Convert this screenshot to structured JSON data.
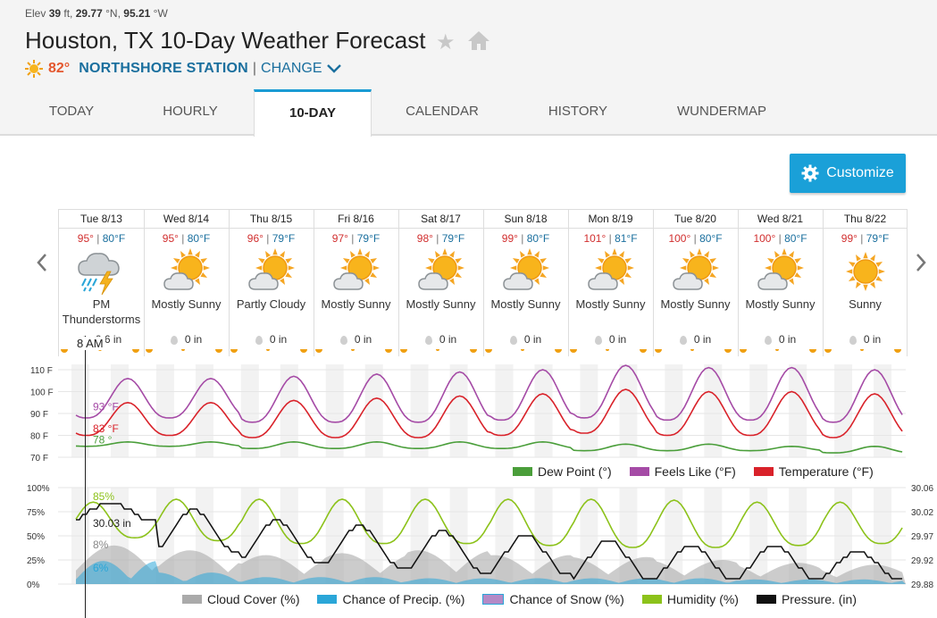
{
  "header": {
    "elev_label": "Elev",
    "elev_value": "39",
    "elev_unit": "ft,",
    "lat": "29.77",
    "lat_unit": "°N,",
    "lon": "95.21",
    "lon_unit": "°W",
    "title": "Houston, TX 10-Day Weather Forecast",
    "current_temp": "82°",
    "station": "NORTHSHORE STATION",
    "separator": "|",
    "change_label": "CHANGE"
  },
  "tabs": [
    {
      "label": "TODAY"
    },
    {
      "label": "HOURLY"
    },
    {
      "label": "10-DAY"
    },
    {
      "label": "CALENDAR"
    },
    {
      "label": "HISTORY"
    },
    {
      "label": "WUNDERMAP"
    }
  ],
  "customize_label": "Customize",
  "time_tag": "8 AM",
  "days": [
    {
      "date": "Tue 8/13",
      "hi": "95°",
      "lo": "80°F",
      "cond": "PM Thunderstorms",
      "precip": "0.6 in",
      "icon": "thunderstorm-icon"
    },
    {
      "date": "Wed 8/14",
      "hi": "95°",
      "lo": "80°F",
      "cond": "Mostly Sunny",
      "precip": "0 in",
      "icon": "mostly-sunny-icon"
    },
    {
      "date": "Thu 8/15",
      "hi": "96°",
      "lo": "79°F",
      "cond": "Partly Cloudy",
      "precip": "0 in",
      "icon": "partly-cloudy-icon"
    },
    {
      "date": "Fri 8/16",
      "hi": "97°",
      "lo": "79°F",
      "cond": "Mostly Sunny",
      "precip": "0 in",
      "icon": "mostly-sunny-icon"
    },
    {
      "date": "Sat 8/17",
      "hi": "98°",
      "lo": "79°F",
      "cond": "Mostly Sunny",
      "precip": "0 in",
      "icon": "mostly-sunny-icon"
    },
    {
      "date": "Sun 8/18",
      "hi": "99°",
      "lo": "80°F",
      "cond": "Mostly Sunny",
      "precip": "0 in",
      "icon": "mostly-sunny-icon"
    },
    {
      "date": "Mon 8/19",
      "hi": "101°",
      "lo": "81°F",
      "cond": "Mostly Sunny",
      "precip": "0 in",
      "icon": "mostly-sunny-icon"
    },
    {
      "date": "Tue 8/20",
      "hi": "100°",
      "lo": "80°F",
      "cond": "Mostly Sunny",
      "precip": "0 in",
      "icon": "mostly-sunny-icon"
    },
    {
      "date": "Wed 8/21",
      "hi": "100°",
      "lo": "80°F",
      "cond": "Mostly Sunny",
      "precip": "0 in",
      "icon": "mostly-sunny-icon"
    },
    {
      "date": "Thu 8/22",
      "hi": "99°",
      "lo": "79°F",
      "cond": "Sunny",
      "precip": "0 in",
      "icon": "sunny-icon"
    }
  ],
  "colors": {
    "temperature": "#d9222a",
    "feels_like": "#a54ba6",
    "dew_point": "#4a9e3a",
    "humidity": "#8cc21a",
    "pressure": "#111111",
    "precip": "#2aa6d8",
    "cloud": "#aaaaaa",
    "snow": "#b48ac6"
  },
  "chart_data": [
    {
      "type": "line",
      "y_ticks": [
        "70 F",
        "80 F",
        "90 F",
        "100 F",
        "110 F"
      ],
      "ylim": [
        70,
        110
      ],
      "labels_at_cursor": {
        "feels_like": "93 °F",
        "temperature": "83 °F",
        "dew_point": "78 °"
      },
      "legend": [
        "Dew Point (°)",
        "Feels Like (°F)",
        "Temperature (°F)"
      ],
      "series": [
        {
          "name": "Temperature (°F)",
          "day_high": [
            95,
            95,
            96,
            97,
            98,
            99,
            101,
            100,
            100,
            99
          ],
          "day_low": [
            80,
            80,
            79,
            79,
            79,
            80,
            81,
            80,
            80,
            79
          ]
        },
        {
          "name": "Feels Like (°F)",
          "day_high": [
            106,
            106,
            107,
            108,
            109,
            110,
            112,
            111,
            111,
            110
          ],
          "day_low": [
            88,
            88,
            86,
            86,
            86,
            87,
            88,
            87,
            87,
            86
          ]
        },
        {
          "name": "Dew Point (°)",
          "day_high": [
            77,
            77,
            77,
            77,
            77,
            77,
            76,
            76,
            75,
            75
          ],
          "day_low": [
            75,
            75,
            74,
            74,
            74,
            74,
            73,
            73,
            73,
            72
          ]
        }
      ]
    },
    {
      "type": "line",
      "y_ticks_left": [
        "0%",
        "25%",
        "50%",
        "75%",
        "100%"
      ],
      "y_ticks_right": [
        "29.88",
        "29.92",
        "29.97",
        "30.02",
        "30.06"
      ],
      "labels_at_cursor": {
        "humidity": "85%",
        "pressure": "30.03 in",
        "cloud": "8%",
        "precip": "6%"
      },
      "legend": [
        "Cloud Cover (%)",
        "Chance of Precip. (%)",
        "Chance of Snow (%)",
        "Humidity (%)",
        "Pressure. (in)"
      ],
      "series": [
        {
          "name": "Humidity (%)",
          "day_max": [
            85,
            88,
            88,
            88,
            88,
            88,
            88,
            87,
            85,
            85
          ],
          "day_min": [
            48,
            45,
            42,
            42,
            42,
            40,
            38,
            38,
            40,
            42
          ]
        },
        {
          "name": "Pressure. (in)",
          "day_max": [
            30.03,
            30.02,
            30.0,
            29.99,
            29.98,
            29.97,
            29.96,
            29.95,
            29.95,
            29.94
          ],
          "day_min": [
            30.0,
            29.94,
            29.92,
            29.91,
            29.9,
            29.9,
            29.89,
            29.89,
            29.89,
            29.89
          ]
        },
        {
          "name": "Cloud Cover (%)",
          "day_max": [
            40,
            35,
            30,
            32,
            35,
            30,
            28,
            25,
            22,
            20
          ]
        },
        {
          "name": "Chance of Precip. (%)",
          "day_max": [
            40,
            20,
            12,
            12,
            10,
            10,
            10,
            10,
            8,
            8
          ]
        }
      ]
    }
  ]
}
